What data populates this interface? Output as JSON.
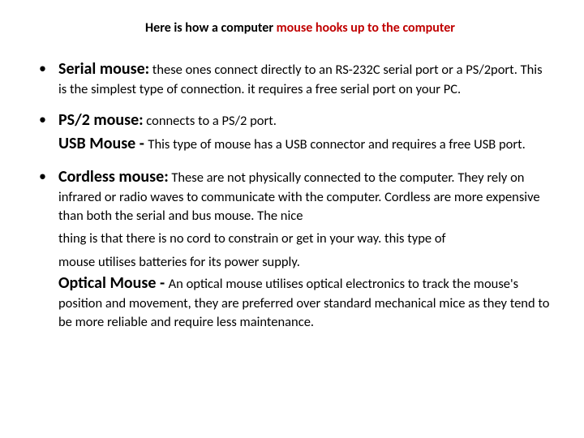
{
  "title": {
    "part1": "Here is how a computer ",
    "part2": "mouse hooks up to the computer",
    "fontsize": 20,
    "part1_color": "#000000",
    "part2_color": "#c00000"
  },
  "items": {
    "serial": {
      "label": "Serial mouse:",
      "body": " these ones connect directly to an RS-232C serial port or a PS/2port. This is the simplest type of connection. it requires a free serial port on your PC."
    },
    "ps2": {
      "label": "PS/2 mouse:",
      "body": " connects to a PS/2 port."
    },
    "usb": {
      "label": "USB Mouse - ",
      "body": "This type of mouse has a USB connector and requires a free USB port."
    },
    "cordless": {
      "label": "Cordless mouse:",
      "body1": " These are not physically connected to the computer. They rely on infrared or radio waves to communicate with the computer. Cordless are more expensive than both the serial and bus mouse. The nice ",
      "body2": "thing is that there is no cord to constrain or get in your way. ",
      "body3": "this type of ",
      "body4": "mouse utilises batteries for its power supply."
    },
    "optical": {
      "label": "Optical Mouse - ",
      "body": "An optical mouse utilises optical electronics to track the mouse's position and movement, they are preferred over standard mechanical mice as they tend to be more reliable and require less maintenance."
    }
  },
  "style": {
    "label_fontsize": 20,
    "body_fontsize": 16.5,
    "background_color": "#ffffff",
    "text_color": "#000000",
    "bullet_char": "•"
  }
}
